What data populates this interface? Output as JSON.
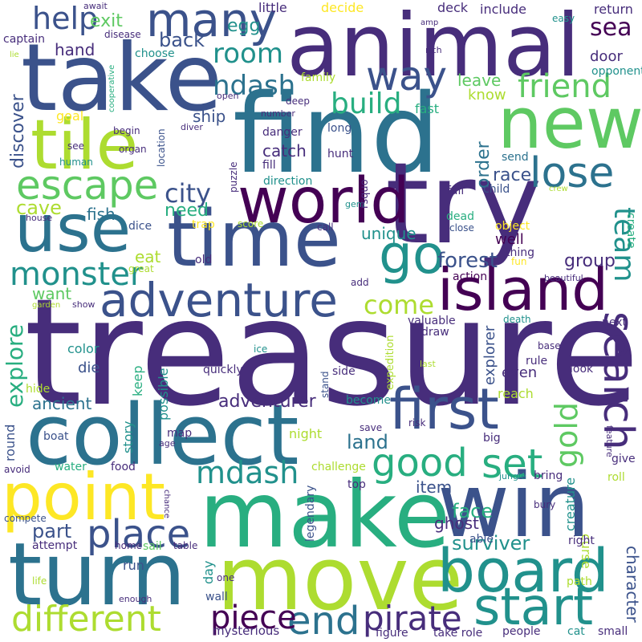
{
  "palette": {
    "darkpurple": "#440154",
    "indigo": "#472d7b",
    "navy": "#3b528b",
    "blue": "#2c728e",
    "teal": "#21918c",
    "green": "#28ae80",
    "lime": "#5ec962",
    "yellowgreen": "#addc30",
    "yellow": "#fde725"
  },
  "words": [
    {
      "text": "treasure",
      "color": "indigo"
    },
    {
      "text": "animal",
      "color": "indigo"
    },
    {
      "text": "find",
      "color": "blue"
    },
    {
      "text": "take",
      "color": "navy"
    },
    {
      "text": "make",
      "color": "green"
    },
    {
      "text": "win",
      "color": "navy"
    },
    {
      "text": "collect",
      "color": "blue"
    },
    {
      "text": "move",
      "color": "yellowgreen"
    },
    {
      "text": "time",
      "color": "navy"
    },
    {
      "text": "try",
      "color": "indigo"
    },
    {
      "text": "turn",
      "color": "blue"
    },
    {
      "text": "new",
      "color": "lime"
    },
    {
      "text": "world",
      "color": "darkpurple"
    },
    {
      "text": "point",
      "color": "yellow"
    },
    {
      "text": "tile",
      "color": "yellowgreen"
    },
    {
      "text": "use",
      "color": "blue"
    },
    {
      "text": "board",
      "color": "teal"
    },
    {
      "text": "island",
      "color": "darkpurple"
    },
    {
      "text": "first",
      "color": "navy"
    },
    {
      "text": "many",
      "color": "navy"
    },
    {
      "text": "adventure",
      "color": "navy"
    },
    {
      "text": "go",
      "color": "teal"
    },
    {
      "text": "good",
      "color": "green"
    },
    {
      "text": "start",
      "color": "teal"
    },
    {
      "text": "set",
      "color": "green"
    },
    {
      "text": "escape",
      "color": "lime"
    },
    {
      "text": "lose",
      "color": "blue"
    },
    {
      "text": "place",
      "color": "navy"
    },
    {
      "text": "different",
      "color": "yellowgreen"
    },
    {
      "text": "monster",
      "color": "teal"
    },
    {
      "text": "way",
      "color": "navy"
    },
    {
      "text": "friend",
      "color": "lime"
    },
    {
      "text": "search",
      "color": "indigo"
    },
    {
      "text": "end",
      "color": "blue"
    },
    {
      "text": "pirate",
      "color": "indigo"
    },
    {
      "text": "piece",
      "color": "darkpurple"
    },
    {
      "text": "mdash",
      "color": "teal"
    },
    {
      "text": "city",
      "color": "navy"
    },
    {
      "text": "come",
      "color": "yellowgreen"
    },
    {
      "text": "help",
      "color": "navy"
    },
    {
      "text": "room",
      "color": "teal"
    },
    {
      "text": "build",
      "color": "green"
    },
    {
      "text": "ndash",
      "color": "blue"
    },
    {
      "text": "gold",
      "color": "lime"
    },
    {
      "text": "team",
      "color": "teal"
    },
    {
      "text": "sea",
      "color": "darkpurple"
    },
    {
      "text": "explore",
      "color": "green"
    },
    {
      "text": "forest",
      "color": "navy"
    },
    {
      "text": "cave",
      "color": "yellowgreen"
    },
    {
      "text": "back",
      "color": "navy"
    },
    {
      "text": "surviver",
      "color": "teal"
    },
    {
      "text": "adventurer",
      "color": "indigo"
    },
    {
      "text": "part",
      "color": "navy"
    },
    {
      "text": "face",
      "color": "green"
    },
    {
      "text": "land",
      "color": "blue"
    },
    {
      "text": "discover",
      "color": "navy"
    },
    {
      "text": "character",
      "color": "navy"
    },
    {
      "text": "need",
      "color": "green"
    },
    {
      "text": "ancient",
      "color": "blue"
    },
    {
      "text": "item",
      "color": "navy"
    },
    {
      "text": "ghost",
      "color": "indigo"
    },
    {
      "text": "exit",
      "color": "lime"
    },
    {
      "text": "egg",
      "color": "teal"
    },
    {
      "text": "group",
      "color": "indigo"
    },
    {
      "text": "order",
      "color": "blue"
    },
    {
      "text": "race",
      "color": "navy"
    },
    {
      "text": "unique",
      "color": "teal"
    },
    {
      "text": "fish",
      "color": "blue"
    },
    {
      "text": "catch",
      "color": "indigo"
    },
    {
      "text": "want",
      "color": "lime"
    },
    {
      "text": "eat",
      "color": "yellowgreen"
    },
    {
      "text": "ship",
      "color": "navy"
    },
    {
      "text": "hand",
      "color": "indigo"
    },
    {
      "text": "leave",
      "color": "lime"
    },
    {
      "text": "know",
      "color": "yellowgreen"
    },
    {
      "text": "door",
      "color": "indigo"
    },
    {
      "text": "return",
      "color": "indigo"
    },
    {
      "text": "create",
      "color": "green"
    },
    {
      "text": "well",
      "color": "darkpurple"
    },
    {
      "text": "even",
      "color": "indigo"
    },
    {
      "text": "explorer",
      "color": "navy"
    },
    {
      "text": "reach",
      "color": "yellowgreen"
    },
    {
      "text": "story",
      "color": "teal"
    },
    {
      "text": "possible",
      "color": "teal"
    },
    {
      "text": "keep",
      "color": "green"
    },
    {
      "text": "die",
      "color": "navy"
    },
    {
      "text": "color",
      "color": "teal"
    },
    {
      "text": "night",
      "color": "yellowgreen"
    },
    {
      "text": "round",
      "color": "navy"
    },
    {
      "text": "creature",
      "color": "teal"
    },
    {
      "text": "curse",
      "color": "yellowgreen"
    },
    {
      "text": "day",
      "color": "teal"
    },
    {
      "text": "run",
      "color": "navy"
    },
    {
      "text": "mysterious",
      "color": "indigo"
    },
    {
      "text": "little",
      "color": "indigo"
    },
    {
      "text": "decide",
      "color": "yellow"
    },
    {
      "text": "deck",
      "color": "indigo"
    },
    {
      "text": "include",
      "color": "indigo"
    },
    {
      "text": "choose",
      "color": "teal"
    },
    {
      "text": "disease",
      "color": "indigo"
    },
    {
      "text": "captain",
      "color": "indigo"
    },
    {
      "text": "family",
      "color": "yellowgreen"
    },
    {
      "text": "goal",
      "color": "yellow"
    },
    {
      "text": "fast",
      "color": "green"
    },
    {
      "text": "deep",
      "color": "indigo"
    },
    {
      "text": "long",
      "color": "navy"
    },
    {
      "text": "hunt",
      "color": "indigo"
    },
    {
      "text": "send",
      "color": "blue"
    },
    {
      "text": "child",
      "color": "navy"
    },
    {
      "text": "fall",
      "color": "indigo"
    },
    {
      "text": "dead",
      "color": "green"
    },
    {
      "text": "close",
      "color": "navy"
    },
    {
      "text": "object",
      "color": "yellow"
    },
    {
      "text": "fun",
      "color": "yellow"
    },
    {
      "text": "thing",
      "color": "indigo"
    },
    {
      "text": "action",
      "color": "darkpurple"
    },
    {
      "text": "beautiful",
      "color": "indigo"
    },
    {
      "text": "next",
      "color": "indigo"
    },
    {
      "text": "look",
      "color": "indigo"
    },
    {
      "text": "big",
      "color": "indigo"
    },
    {
      "text": "give",
      "color": "indigo"
    },
    {
      "text": "roll",
      "color": "yellowgreen"
    },
    {
      "text": "bring",
      "color": "indigo"
    },
    {
      "text": "jungle",
      "color": "teal"
    },
    {
      "text": "small",
      "color": "indigo"
    },
    {
      "text": "people",
      "color": "indigo"
    },
    {
      "text": "cat",
      "color": "teal"
    },
    {
      "text": "path",
      "color": "yellowgreen"
    },
    {
      "text": "right",
      "color": "indigo"
    },
    {
      "text": "able",
      "color": "navy"
    },
    {
      "text": "take role",
      "color": "indigo"
    },
    {
      "text": "figure",
      "color": "indigo"
    },
    {
      "text": "wall",
      "color": "navy"
    },
    {
      "text": "one",
      "color": "indigo"
    },
    {
      "text": "home",
      "color": "indigo"
    },
    {
      "text": "sail",
      "color": "lime"
    },
    {
      "text": "table",
      "color": "indigo"
    },
    {
      "text": "map",
      "color": "indigo"
    },
    {
      "text": "age",
      "color": "indigo"
    },
    {
      "text": "boat",
      "color": "navy"
    },
    {
      "text": "water",
      "color": "green"
    },
    {
      "text": "food",
      "color": "indigo"
    },
    {
      "text": "avoid",
      "color": "indigo"
    },
    {
      "text": "compete",
      "color": "navy"
    },
    {
      "text": "attempt",
      "color": "indigo"
    },
    {
      "text": "chance",
      "color": "indigo"
    },
    {
      "text": "life",
      "color": "yellowgreen"
    },
    {
      "text": "enough",
      "color": "indigo"
    },
    {
      "text": "hide",
      "color": "yellowgreen"
    },
    {
      "text": "quickly",
      "color": "indigo"
    },
    {
      "text": "side",
      "color": "indigo"
    },
    {
      "text": "become",
      "color": "teal"
    },
    {
      "text": "save",
      "color": "indigo"
    },
    {
      "text": "risk",
      "color": "indigo"
    },
    {
      "text": "challenge",
      "color": "yellowgreen"
    },
    {
      "text": "top",
      "color": "indigo"
    },
    {
      "text": "legendary",
      "color": "navy"
    },
    {
      "text": "stand",
      "color": "navy"
    },
    {
      "text": "expedition",
      "color": "yellowgreen"
    },
    {
      "text": "last",
      "color": "yellowgreen"
    },
    {
      "text": "draw",
      "color": "indigo"
    },
    {
      "text": "valuable",
      "color": "indigo"
    },
    {
      "text": "rule",
      "color": "indigo"
    },
    {
      "text": "base",
      "color": "indigo"
    },
    {
      "text": "death",
      "color": "teal"
    },
    {
      "text": "feature",
      "color": "indigo"
    },
    {
      "text": "bury",
      "color": "indigo"
    },
    {
      "text": "add",
      "color": "indigo"
    },
    {
      "text": "ice",
      "color": "teal"
    },
    {
      "text": "great",
      "color": "yellowgreen"
    },
    {
      "text": "old",
      "color": "indigo"
    },
    {
      "text": "dice",
      "color": "navy"
    },
    {
      "text": "trap",
      "color": "yellow"
    },
    {
      "text": "score",
      "color": "yellowgreen"
    },
    {
      "text": "call",
      "color": "indigo"
    },
    {
      "text": "gem",
      "color": "teal"
    },
    {
      "text": "rsquo",
      "color": "indigo"
    },
    {
      "text": "puzzle",
      "color": "indigo"
    },
    {
      "text": "fill",
      "color": "indigo"
    },
    {
      "text": "direction",
      "color": "teal"
    },
    {
      "text": "danger",
      "color": "indigo"
    },
    {
      "text": "number",
      "color": "indigo"
    },
    {
      "text": "diver",
      "color": "indigo"
    },
    {
      "text": "location",
      "color": "navy"
    },
    {
      "text": "organ",
      "color": "indigo"
    },
    {
      "text": "begin",
      "color": "indigo"
    },
    {
      "text": "see",
      "color": "indigo"
    },
    {
      "text": "human",
      "color": "teal"
    },
    {
      "text": "house",
      "color": "indigo"
    },
    {
      "text": "garden",
      "color": "yellowgreen"
    },
    {
      "text": "show",
      "color": "indigo"
    },
    {
      "text": "cooperative",
      "color": "green"
    },
    {
      "text": "lie",
      "color": "yellowgreen"
    },
    {
      "text": "await",
      "color": "indigo"
    },
    {
      "text": "amp",
      "color": "indigo"
    },
    {
      "text": "rich",
      "color": "indigo"
    },
    {
      "text": "open",
      "color": "indigo"
    },
    {
      "text": "opponent",
      "color": "teal"
    },
    {
      "text": "easy",
      "color": "teal"
    },
    {
      "text": "crew",
      "color": "yellowgreen"
    }
  ]
}
